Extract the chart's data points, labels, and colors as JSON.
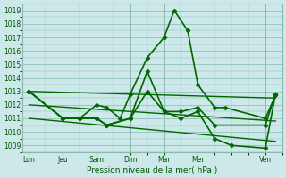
{
  "xlabel": "Pression niveau de la mer( hPa )",
  "background_color": "#cce8e8",
  "grid_color": "#88b8b0",
  "text_color": "#005500",
  "line_color": "#006600",
  "ylim": [
    1008.5,
    1019.5
  ],
  "yticks": [
    1009,
    1010,
    1011,
    1012,
    1013,
    1014,
    1015,
    1016,
    1017,
    1018,
    1019
  ],
  "x_labels": [
    "Lun",
    "Jeu",
    "Sam",
    "Dim",
    "Mar",
    "Mer",
    "Ven"
  ],
  "x_positions": [
    0,
    1,
    2,
    3,
    4,
    5,
    7
  ],
  "xlim": [
    -0.2,
    7.5
  ],
  "series": [
    {
      "x": [
        0,
        1,
        1.5,
        2,
        2.3,
        2.7,
        3,
        3.5,
        4,
        4.3,
        4.7,
        5,
        5.5,
        5.8,
        7,
        7.3
      ],
      "y": [
        1013,
        1011,
        1011,
        1012,
        1011.8,
        1011,
        1012.8,
        1015.5,
        1017,
        1019,
        1017.5,
        1013.5,
        1011.8,
        1011.8,
        1011,
        1012.7
      ],
      "marker": "D",
      "markersize": 2.5,
      "linewidth": 1.2
    },
    {
      "x": [
        0,
        1,
        1.5,
        2,
        2.3,
        3,
        3.5,
        4,
        4.5,
        5,
        5.5,
        7,
        7.3
      ],
      "y": [
        1013,
        1011,
        1011,
        1011,
        1010.5,
        1011,
        1014.5,
        1011.5,
        1011.5,
        1011.8,
        1010.5,
        1010.5,
        1012.8
      ],
      "marker": "D",
      "markersize": 2.5,
      "linewidth": 1.2
    },
    {
      "x": [
        0,
        1,
        1.5,
        2,
        2.3,
        3,
        3.5,
        4,
        4.5,
        5,
        5.5,
        6,
        7,
        7.3
      ],
      "y": [
        1013,
        1011,
        1011,
        1011,
        1010.5,
        1011,
        1013,
        1011.5,
        1011,
        1011.5,
        1009.5,
        1009,
        1008.8,
        1012.8
      ],
      "marker": "D",
      "markersize": 2.5,
      "linewidth": 1.2
    },
    {
      "x": [
        0,
        7.3
      ],
      "y": [
        1013,
        1012.5
      ],
      "marker": null,
      "linewidth": 1.0
    },
    {
      "x": [
        0,
        7.3
      ],
      "y": [
        1012,
        1010.8
      ],
      "marker": null,
      "linewidth": 1.0
    },
    {
      "x": [
        0,
        7.3
      ],
      "y": [
        1011,
        1009.3
      ],
      "marker": null,
      "linewidth": 1.0
    }
  ]
}
